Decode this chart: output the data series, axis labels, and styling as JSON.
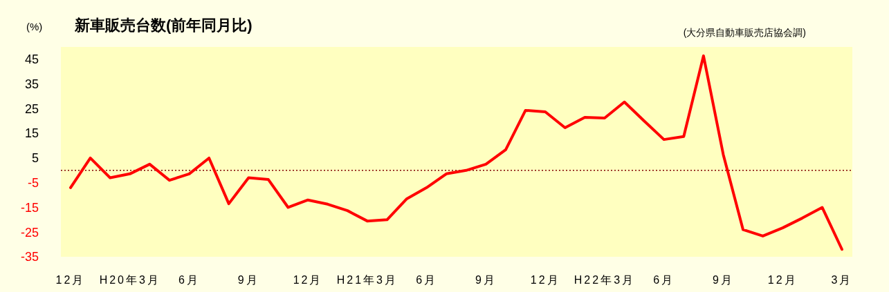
{
  "chart_data": {
    "type": "line",
    "title": "新車販売台数(前年同月比)",
    "ylabel": "(%)",
    "annotations": [
      "(大分県自動車販売店協会調)"
    ],
    "categories": [
      "12月",
      null,
      null,
      "H20年3月",
      null,
      null,
      "6月",
      null,
      null,
      "9月",
      null,
      null,
      "12月",
      null,
      null,
      "H21年3月",
      null,
      null,
      "6月",
      null,
      null,
      "9月",
      null,
      null,
      "12月",
      null,
      null,
      "H22年3月",
      null,
      null,
      "6月",
      null,
      null,
      "9月",
      null,
      null,
      "12月",
      null,
      null,
      "3月"
    ],
    "series": [
      {
        "color": "#ff0000",
        "values": [
          -7,
          5,
          -3,
          -1.4,
          2.5,
          -4,
          -1.4,
          5,
          -13.5,
          -3,
          -3.7,
          -15,
          -12,
          -13.7,
          -16.3,
          -20.5,
          -20,
          -11.5,
          -7,
          -1.4,
          0,
          2.5,
          8.4,
          24.3,
          23.7,
          17.3,
          21.5,
          21.2,
          27.7,
          20,
          12.5,
          13.7,
          46.4,
          6.4,
          -24,
          -26.6,
          -23.3,
          -19.3,
          -15,
          -32
        ]
      }
    ],
    "ylim": [
      -35,
      50
    ],
    "yticks": [
      -35,
      -25,
      -15,
      -5,
      5,
      15,
      25,
      35,
      45
    ],
    "ref_lines": [
      {
        "axis": "y",
        "value": 0,
        "color": "#800000",
        "line_style": "dotted"
      }
    ],
    "grid": false,
    "marker": "none",
    "line_style": "solid"
  }
}
